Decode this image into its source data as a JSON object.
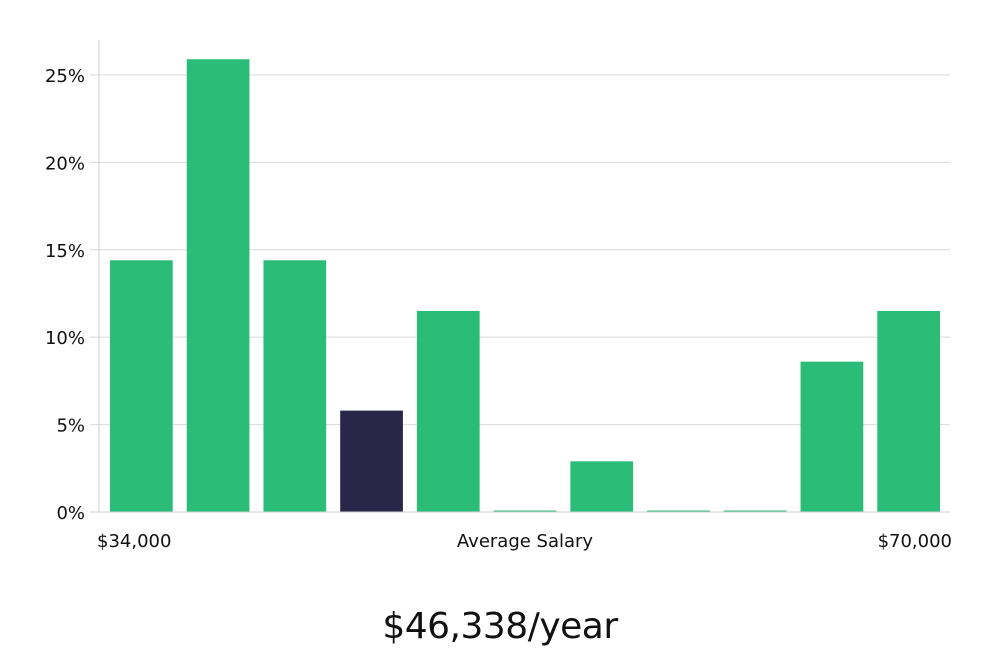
{
  "chart_data": {
    "type": "bar",
    "categories": [
      "$34,000",
      "",
      "",
      "",
      "",
      "",
      "",
      "",
      "",
      "",
      "$70,000"
    ],
    "values": [
      14.4,
      25.9,
      14.4,
      5.8,
      11.5,
      0,
      2.9,
      0,
      0,
      8.6,
      11.5
    ],
    "highlight_index": 3,
    "xlabel": "Average Salary",
    "ylabel": "",
    "ylim": [
      0,
      27
    ],
    "y_ticks": [
      "0%",
      "5%",
      "10%",
      "15%",
      "20%",
      "25%"
    ],
    "y_tick_values": [
      0,
      5,
      10,
      15,
      20,
      25
    ],
    "x_range_labels": {
      "min": "$34,000",
      "max": "$70,000"
    },
    "grid": true,
    "colors": {
      "bar": "#2bbd78",
      "bar_highlight": "#29264a"
    }
  },
  "salary": {
    "readout": "$46,338/year"
  }
}
